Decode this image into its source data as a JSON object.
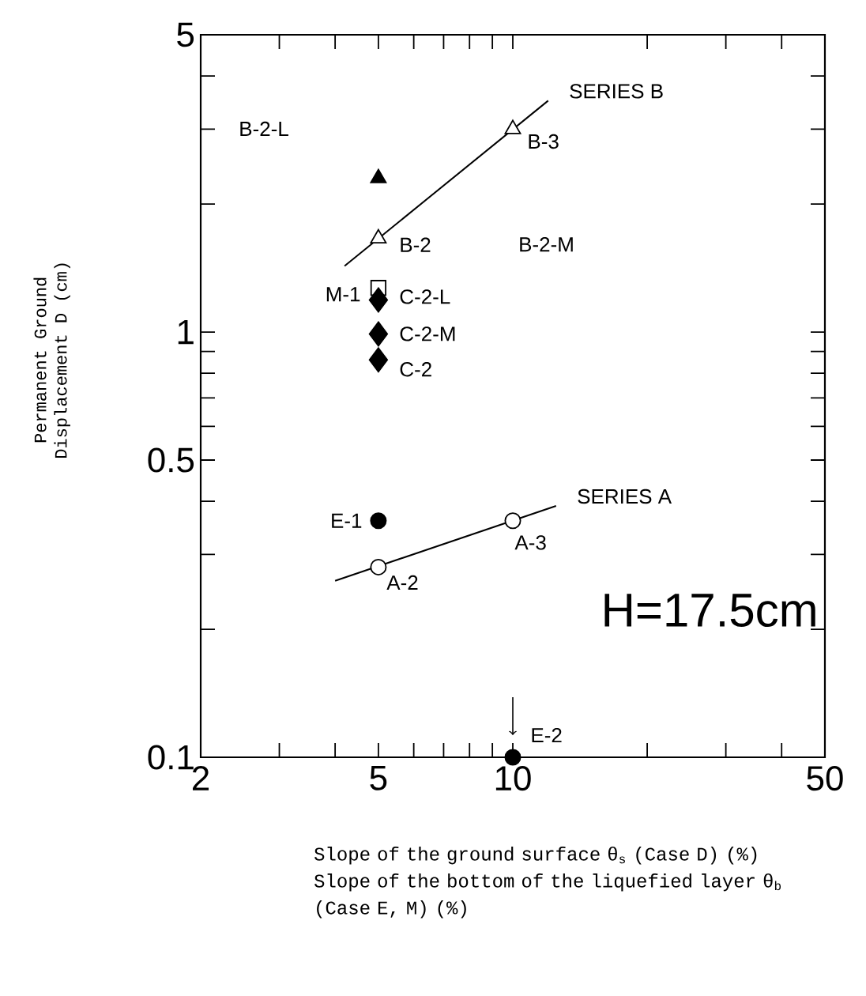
{
  "chart_data": {
    "type": "scatter",
    "ylabel": "Permanent Ground Displacement D (cm)",
    "xlabel": "Slope of the ground surface θ$_{s}$ (Case D) (%)",
    "log": "xy",
    "legend": false,
    "grid": false,
    "xlim": [
      2,
      50
    ],
    "ylim": [
      0.1,
      5
    ],
    "xticks": [
      2,
      {
        "value": 3,
        "label": null
      },
      {
        "value": 4,
        "label": null
      },
      5,
      {
        "value": 6,
        "label": null
      },
      {
        "value": 7,
        "label": null
      },
      {
        "value": 8,
        "label": null
      },
      {
        "value": 9,
        "label": null
      },
      10,
      {
        "value": 20,
        "label": null
      },
      {
        "value": 30,
        "label": null
      },
      {
        "value": 40,
        "label": null
      },
      50
    ],
    "yticks": [
      0.1,
      {
        "value": 0.2,
        "label": null
      },
      {
        "value": 0.3,
        "label": null
      },
      {
        "value": 0.4,
        "label": null
      },
      0.5,
      {
        "value": 0.6,
        "label": null
      },
      {
        "value": 0.7,
        "label": null
      },
      {
        "value": 0.8,
        "label": null
      },
      {
        "value": 0.9,
        "label": null
      },
      1,
      {
        "value": 2,
        "label": null
      },
      {
        "value": 3,
        "label": null
      },
      {
        "value": 4,
        "label": null
      },
      5
    ],
    "series": [
      {
        "type": "line",
        "name": "SERIES B",
        "x": [
          4.2,
          12
        ],
        "values": [
          1.43,
          3.5
        ],
        "color": "#000000",
        "marker": "none"
      },
      {
        "type": "line",
        "name": "SERIES A",
        "x": [
          4,
          12.5
        ],
        "values": [
          0.26,
          0.39
        ],
        "color": "#000000",
        "marker": "none"
      },
      {
        "x": [
          5
        ],
        "values": [
          2.3
        ],
        "color": "#000000",
        "marker": "triangle"
      },
      {
        "x": [
          5,
          10
        ],
        "values": [
          1.66,
          3.0
        ],
        "color": "#ffffff",
        "marker": "triangle"
      },
      {
        "x": [
          5
        ],
        "values": [
          1.27
        ],
        "color": "#ffffff",
        "marker": "square"
      },
      {
        "x": [
          5,
          5,
          5
        ],
        "values": [
          1.19,
          0.99,
          0.86
        ],
        "color": "#000000",
        "marker": "diamond"
      },
      {
        "x": [
          5,
          10
        ],
        "values": [
          0.28,
          0.36
        ],
        "color": "#ffffff",
        "marker": "circle"
      },
      {
        "x": [
          5,
          10
        ],
        "values": [
          0.36,
          0.1
        ],
        "color": "#000000",
        "marker": "circle"
      }
    ],
    "annotations": [
      "B-3",
      "B-2-L",
      "B-2",
      "B-2-M",
      "M-1",
      "C-2-L",
      "C-2-M",
      "C-2",
      "E-1",
      "A-3",
      "A-2",
      "E-2",
      "H=17.5cm",
      "Slope of the bottom of the liquefied layer θ$_{b}$ (Case E, M) (%)"
    ]
  }
}
